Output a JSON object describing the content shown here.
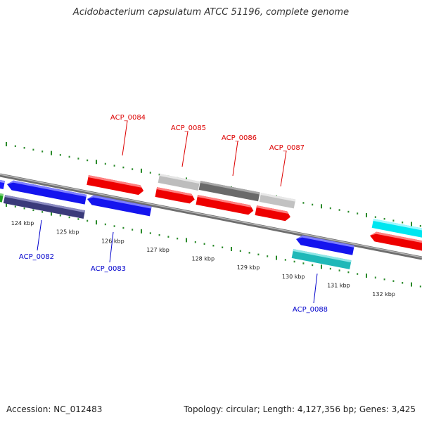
{
  "title": "Acidobacterium capsulatum ATCC 51196, complete genome",
  "footer": {
    "accession": "Accession: NC_012483",
    "topology": "Topology: circular; Length: 4,127,356 bp; Genes: 3,425"
  },
  "colors": {
    "forward_label": "#dd0000",
    "reverse_label": "#0000cc",
    "tick": "#2a8a2a",
    "backbone": "#888888"
  },
  "kbp_ticks": [
    {
      "kb": 124,
      "label": "124 kbp"
    },
    {
      "kb": 125,
      "label": "125 kbp"
    },
    {
      "kb": 126,
      "label": "126 kbp"
    },
    {
      "kb": 127,
      "label": "127 kbp"
    },
    {
      "kb": 128,
      "label": "128 kbp"
    },
    {
      "kb": 129,
      "label": "129 kbp"
    },
    {
      "kb": 130,
      "label": "130 kbp"
    },
    {
      "kb": 131,
      "label": "131 kbp"
    },
    {
      "kb": 132,
      "label": "132 kbp"
    }
  ],
  "gene_labels": [
    {
      "name": "ACP_0084",
      "strand": "forward"
    },
    {
      "name": "ACP_0085",
      "strand": "forward"
    },
    {
      "name": "ACP_0086",
      "strand": "forward"
    },
    {
      "name": "ACP_0087",
      "strand": "forward"
    },
    {
      "name": "ACP_0082",
      "strand": "reverse"
    },
    {
      "name": "ACP_0083",
      "strand": "reverse"
    },
    {
      "name": "ACP_0088",
      "strand": "reverse"
    }
  ]
}
